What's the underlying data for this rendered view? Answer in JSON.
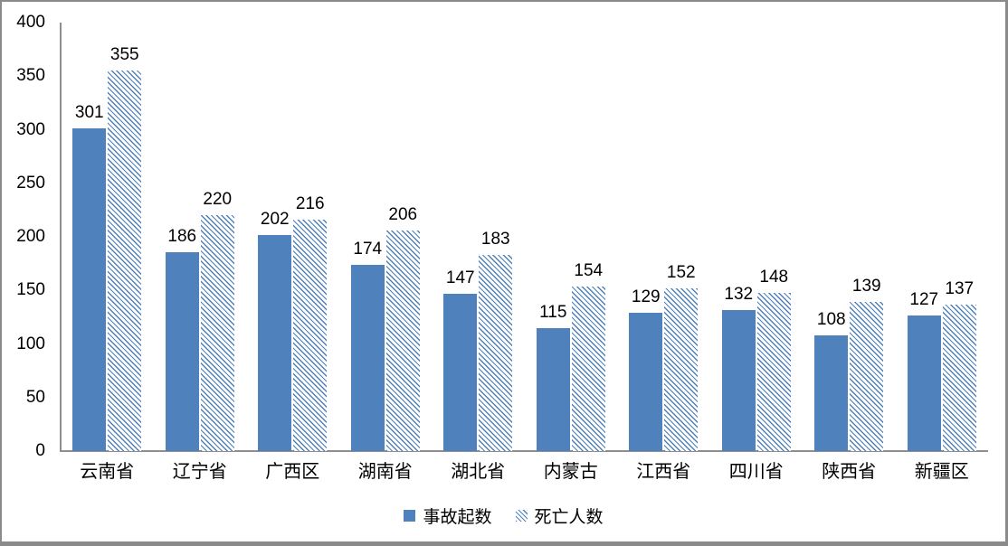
{
  "chart_data": {
    "type": "bar",
    "title": "",
    "xlabel": "",
    "ylabel": "",
    "categories": [
      "云南省",
      "辽宁省",
      "广西区",
      "湖南省",
      "湖北省",
      "内蒙古",
      "江西省",
      "四川省",
      "陕西省",
      "新疆区"
    ],
    "series": [
      {
        "name": "事故起数",
        "style": "solid",
        "values": [
          301,
          186,
          202,
          174,
          147,
          115,
          129,
          132,
          108,
          127
        ]
      },
      {
        "name": "死亡人数",
        "style": "hatch",
        "values": [
          355,
          220,
          216,
          206,
          183,
          154,
          152,
          148,
          139,
          137
        ]
      }
    ],
    "ylim": [
      0,
      400
    ],
    "yticks": [
      400,
      350,
      300,
      250,
      200,
      150,
      100,
      50,
      0
    ],
    "grid": false,
    "value_labels": true,
    "legend_position": "bottom-center",
    "colors": {
      "bar": "#4f81bd",
      "hatch_line": "#4f81bd",
      "axis": "#8e8e8e",
      "text": "#000000",
      "frame_border": "#8a8a8a",
      "background": "#ffffff"
    }
  }
}
